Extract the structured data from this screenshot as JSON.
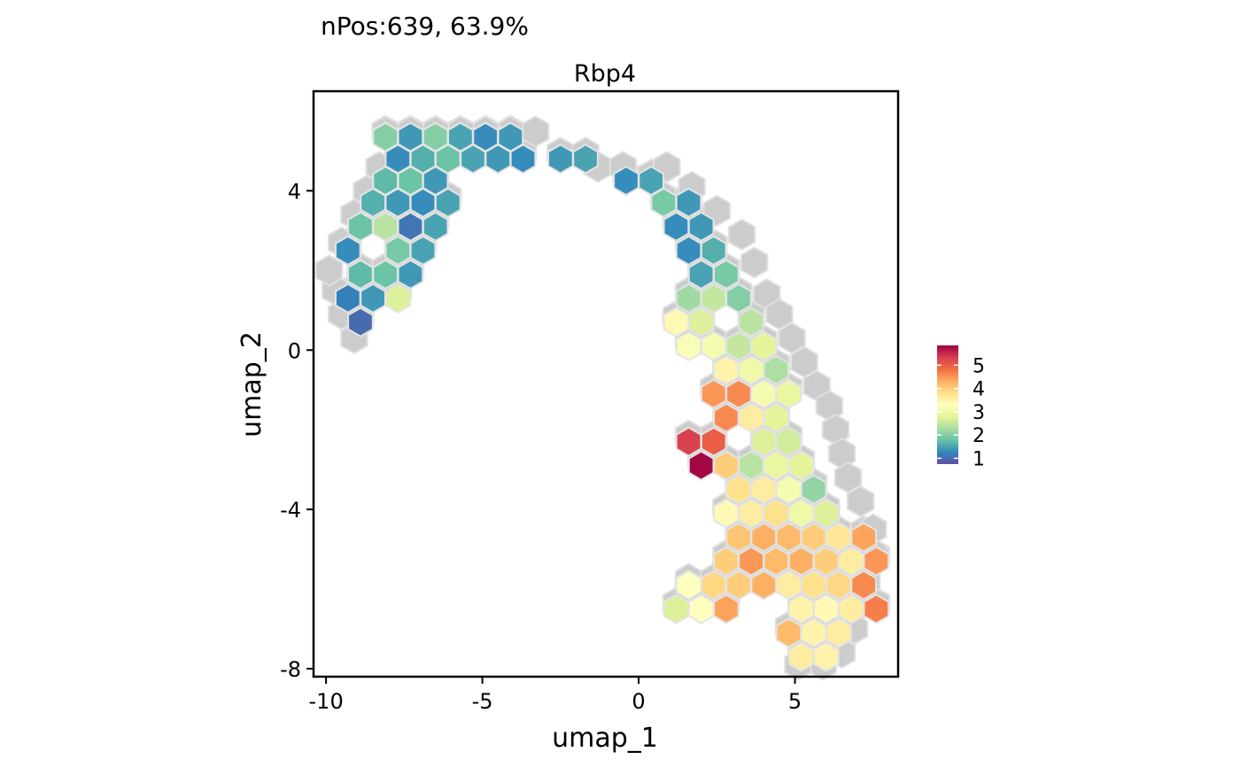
{
  "chart_data": {
    "type": "hexbin",
    "subtitle": "nPos:639, 63.9%",
    "title": "Rbp4",
    "xlabel": "umap_1",
    "ylabel": "umap_2",
    "xlim": [
      -10.4,
      8.3
    ],
    "ylim": [
      -8.2,
      6.5
    ],
    "xticks": [
      -10,
      -5,
      0,
      5
    ],
    "xtick_labels": [
      "-10",
      "-5",
      "0",
      "5"
    ],
    "yticks": [
      4,
      0,
      -4,
      -8
    ],
    "ytick_labels": [
      "4",
      "0",
      "-4",
      "-8"
    ],
    "grid": false,
    "legend": {
      "position": "right",
      "min": 0.75,
      "max": 5.85,
      "ticks": [
        5,
        4,
        3,
        2,
        1
      ],
      "tick_labels": [
        "5",
        "4",
        "3",
        "2",
        "1"
      ]
    },
    "colors": [
      "#5E4FA2",
      "#3288BD",
      "#66C2A5",
      "#ABDDA4",
      "#E6F598",
      "#FFFFBF",
      "#FEE08B",
      "#FDAE61",
      "#F46D43",
      "#D53E4F",
      "#9E0142"
    ],
    "background_hexes": [
      [
        -4.1,
        5.49
      ],
      [
        -3.3,
        5.49
      ],
      [
        -5.3,
        5.26
      ],
      [
        -4.5,
        5.26
      ],
      [
        -6.1,
        5.02
      ],
      [
        -5.7,
        5.26
      ],
      [
        -4.9,
        5.49
      ],
      [
        -5.7,
        5.49
      ],
      [
        -6.5,
        5.49
      ],
      [
        -7.3,
        5.49
      ],
      [
        -8.1,
        5.49
      ],
      [
        -1.3,
        4.6
      ],
      [
        -0.5,
        4.6
      ],
      [
        0.9,
        4.6
      ],
      [
        1.7,
        4.1
      ],
      [
        2.5,
        3.5
      ],
      [
        3.3,
        2.9
      ],
      [
        3.7,
        2.2
      ],
      [
        4.1,
        1.4
      ],
      [
        4.5,
        0.9
      ],
      [
        4.9,
        0.3
      ],
      [
        5.3,
        -0.3
      ],
      [
        5.7,
        -0.9
      ],
      [
        6.1,
        -1.4
      ],
      [
        6.3,
        -2.0
      ],
      [
        6.5,
        -2.6
      ],
      [
        6.7,
        -3.2
      ],
      [
        7.1,
        -3.8
      ],
      [
        7.5,
        -4.5
      ],
      [
        7.5,
        -5.1
      ],
      [
        7.3,
        -5.8
      ],
      [
        7.1,
        -6.4
      ],
      [
        6.9,
        -7.0
      ],
      [
        6.5,
        -7.6
      ],
      [
        5.9,
        -7.9
      ],
      [
        5.1,
        -7.9
      ],
      [
        -9.5,
        2.7
      ],
      [
        -9.7,
        1.5
      ],
      [
        -9.5,
        0.9
      ],
      [
        -9.1,
        0.3
      ],
      [
        -9.9,
        2.0
      ],
      [
        -9.1,
        3.4
      ],
      [
        -8.7,
        4.0
      ],
      [
        -8.3,
        4.6
      ]
    ],
    "hexes": [
      {
        "x": -8.1,
        "y": 5.35,
        "v": 2.0
      },
      {
        "x": -7.3,
        "y": 5.35,
        "v": 1.4
      },
      {
        "x": -6.5,
        "y": 5.35,
        "v": 2.0
      },
      {
        "x": -5.7,
        "y": 5.35,
        "v": 1.5
      },
      {
        "x": -4.9,
        "y": 5.35,
        "v": 1.3
      },
      {
        "x": -4.1,
        "y": 5.35,
        "v": 1.4
      },
      {
        "x": -7.7,
        "y": 4.8,
        "v": 1.3
      },
      {
        "x": -6.9,
        "y": 4.8,
        "v": 1.6
      },
      {
        "x": -6.1,
        "y": 4.8,
        "v": 1.8
      },
      {
        "x": -5.3,
        "y": 4.8,
        "v": 1.5
      },
      {
        "x": -4.5,
        "y": 4.8,
        "v": 1.4
      },
      {
        "x": -3.7,
        "y": 4.8,
        "v": 1.3
      },
      {
        "x": -2.5,
        "y": 4.8,
        "v": 1.4
      },
      {
        "x": -1.7,
        "y": 4.8,
        "v": 1.5
      },
      {
        "x": -8.1,
        "y": 4.25,
        "v": 1.7
      },
      {
        "x": -7.3,
        "y": 4.25,
        "v": 1.8
      },
      {
        "x": -6.5,
        "y": 4.25,
        "v": 1.4
      },
      {
        "x": -0.4,
        "y": 4.25,
        "v": 1.3
      },
      {
        "x": 0.4,
        "y": 4.25,
        "v": 1.5
      },
      {
        "x": -8.5,
        "y": 3.7,
        "v": 1.6
      },
      {
        "x": -7.7,
        "y": 3.7,
        "v": 1.4
      },
      {
        "x": -6.9,
        "y": 3.7,
        "v": 1.3
      },
      {
        "x": -6.1,
        "y": 3.7,
        "v": 1.5
      },
      {
        "x": 0.8,
        "y": 3.7,
        "v": 1.9
      },
      {
        "x": 1.6,
        "y": 3.7,
        "v": 1.4
      },
      {
        "x": -8.9,
        "y": 3.1,
        "v": 1.8
      },
      {
        "x": -8.1,
        "y": 3.1,
        "v": 2.4
      },
      {
        "x": -7.3,
        "y": 3.1,
        "v": 1.1
      },
      {
        "x": -6.5,
        "y": 3.1,
        "v": 1.5
      },
      {
        "x": 1.2,
        "y": 3.1,
        "v": 1.3
      },
      {
        "x": 2.0,
        "y": 3.1,
        "v": 1.4
      },
      {
        "x": -9.3,
        "y": 2.5,
        "v": 1.3
      },
      {
        "x": -7.7,
        "y": 2.5,
        "v": 1.9
      },
      {
        "x": -6.9,
        "y": 2.5,
        "v": 1.5
      },
      {
        "x": 1.6,
        "y": 2.5,
        "v": 1.3
      },
      {
        "x": 2.4,
        "y": 2.5,
        "v": 1.6
      },
      {
        "x": -8.9,
        "y": 1.9,
        "v": 1.7
      },
      {
        "x": -8.1,
        "y": 1.9,
        "v": 1.8
      },
      {
        "x": -7.3,
        "y": 1.9,
        "v": 1.4
      },
      {
        "x": 2.0,
        "y": 1.9,
        "v": 1.5
      },
      {
        "x": 2.8,
        "y": 1.9,
        "v": 1.9
      },
      {
        "x": -9.3,
        "y": 1.3,
        "v": 1.2
      },
      {
        "x": -8.5,
        "y": 1.3,
        "v": 1.4
      },
      {
        "x": -7.7,
        "y": 1.3,
        "v": 2.7
      },
      {
        "x": 1.6,
        "y": 1.3,
        "v": 2.2
      },
      {
        "x": 2.4,
        "y": 1.3,
        "v": 2.5
      },
      {
        "x": 3.2,
        "y": 1.3,
        "v": 2.0
      },
      {
        "x": -8.9,
        "y": 0.7,
        "v": 1.0
      },
      {
        "x": 1.2,
        "y": 0.7,
        "v": 3.4
      },
      {
        "x": 2.0,
        "y": 0.7,
        "v": 2.7
      },
      {
        "x": 3.6,
        "y": 0.7,
        "v": 2.4
      },
      {
        "x": 1.6,
        "y": 0.1,
        "v": 3.2
      },
      {
        "x": 2.4,
        "y": 0.1,
        "v": 3.1
      },
      {
        "x": 3.2,
        "y": 0.1,
        "v": 2.5
      },
      {
        "x": 4.0,
        "y": 0.1,
        "v": 2.8
      },
      {
        "x": 2.8,
        "y": -0.5,
        "v": 3.5
      },
      {
        "x": 3.6,
        "y": -0.5,
        "v": 3.0
      },
      {
        "x": 4.4,
        "y": -0.5,
        "v": 2.3
      },
      {
        "x": 2.4,
        "y": -1.1,
        "v": 4.5
      },
      {
        "x": 3.2,
        "y": -1.1,
        "v": 4.6
      },
      {
        "x": 4.0,
        "y": -1.1,
        "v": 3.1
      },
      {
        "x": 4.8,
        "y": -1.1,
        "v": 2.9
      },
      {
        "x": 2.8,
        "y": -1.7,
        "v": 4.6
      },
      {
        "x": 3.6,
        "y": -1.7,
        "v": 3.6
      },
      {
        "x": 4.4,
        "y": -1.7,
        "v": 2.8
      },
      {
        "x": 1.6,
        "y": -2.3,
        "v": 5.3
      },
      {
        "x": 2.4,
        "y": -2.3,
        "v": 5.0
      },
      {
        "x": 4.0,
        "y": -2.3,
        "v": 2.7
      },
      {
        "x": 4.8,
        "y": -2.3,
        "v": 2.6
      },
      {
        "x": 2.0,
        "y": -2.9,
        "v": 5.8
      },
      {
        "x": 2.8,
        "y": -2.9,
        "v": 4.0
      },
      {
        "x": 3.6,
        "y": -2.9,
        "v": 2.4
      },
      {
        "x": 4.4,
        "y": -2.9,
        "v": 2.9
      },
      {
        "x": 5.2,
        "y": -2.9,
        "v": 2.8
      },
      {
        "x": 3.2,
        "y": -3.5,
        "v": 3.8
      },
      {
        "x": 4.0,
        "y": -3.5,
        "v": 3.6
      },
      {
        "x": 4.8,
        "y": -3.5,
        "v": 3.1
      },
      {
        "x": 5.6,
        "y": -3.5,
        "v": 2.1
      },
      {
        "x": 2.8,
        "y": -4.1,
        "v": 3.4
      },
      {
        "x": 3.6,
        "y": -4.1,
        "v": 3.6
      },
      {
        "x": 4.4,
        "y": -4.1,
        "v": 3.8
      },
      {
        "x": 5.2,
        "y": -4.1,
        "v": 3.0
      },
      {
        "x": 6.0,
        "y": -4.1,
        "v": 2.7
      },
      {
        "x": 3.2,
        "y": -4.7,
        "v": 4.1
      },
      {
        "x": 4.0,
        "y": -4.7,
        "v": 4.3
      },
      {
        "x": 4.8,
        "y": -4.7,
        "v": 4.2
      },
      {
        "x": 5.6,
        "y": -4.7,
        "v": 4.0
      },
      {
        "x": 6.4,
        "y": -4.7,
        "v": 3.7
      },
      {
        "x": 7.2,
        "y": -4.7,
        "v": 4.4
      },
      {
        "x": 2.8,
        "y": -5.3,
        "v": 4.0
      },
      {
        "x": 3.6,
        "y": -5.3,
        "v": 4.5
      },
      {
        "x": 4.4,
        "y": -5.3,
        "v": 4.2
      },
      {
        "x": 5.2,
        "y": -5.3,
        "v": 4.3
      },
      {
        "x": 6.0,
        "y": -5.3,
        "v": 4.0
      },
      {
        "x": 6.8,
        "y": -5.3,
        "v": 3.6
      },
      {
        "x": 7.6,
        "y": -5.3,
        "v": 4.5
      },
      {
        "x": 1.6,
        "y": -5.9,
        "v": 3.3
      },
      {
        "x": 2.4,
        "y": -5.9,
        "v": 3.9
      },
      {
        "x": 3.2,
        "y": -5.9,
        "v": 4.0
      },
      {
        "x": 4.0,
        "y": -5.9,
        "v": 4.3
      },
      {
        "x": 4.8,
        "y": -5.9,
        "v": 3.6
      },
      {
        "x": 5.6,
        "y": -5.9,
        "v": 3.8
      },
      {
        "x": 6.4,
        "y": -5.9,
        "v": 3.9
      },
      {
        "x": 7.2,
        "y": -5.9,
        "v": 4.6
      },
      {
        "x": 1.2,
        "y": -6.5,
        "v": 2.7
      },
      {
        "x": 2.0,
        "y": -6.5,
        "v": 3.3
      },
      {
        "x": 2.8,
        "y": -6.5,
        "v": 4.4
      },
      {
        "x": 5.2,
        "y": -6.5,
        "v": 3.5
      },
      {
        "x": 6.0,
        "y": -6.5,
        "v": 3.4
      },
      {
        "x": 6.8,
        "y": -6.5,
        "v": 3.6
      },
      {
        "x": 7.6,
        "y": -6.5,
        "v": 4.7
      },
      {
        "x": 4.8,
        "y": -7.1,
        "v": 4.2
      },
      {
        "x": 5.6,
        "y": -7.1,
        "v": 3.5
      },
      {
        "x": 6.4,
        "y": -7.1,
        "v": 3.6
      },
      {
        "x": 5.2,
        "y": -7.7,
        "v": 3.6
      },
      {
        "x": 6.0,
        "y": -7.7,
        "v": 3.5
      }
    ]
  }
}
